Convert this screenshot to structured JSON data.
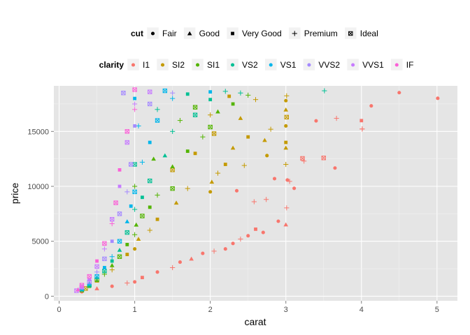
{
  "chart_data": {
    "type": "scatter",
    "xlabel": "carat",
    "ylabel": "price",
    "xlim": [
      -0.07,
      5.27
    ],
    "ylim": [
      -420,
      19150
    ],
    "x_ticks": [
      0,
      1,
      2,
      3,
      4,
      5
    ],
    "y_ticks": [
      0,
      5000,
      10000,
      15000
    ],
    "x_tick_labels": [
      "0",
      "1",
      "2",
      "3",
      "4",
      "5"
    ],
    "y_tick_labels": [
      "0",
      "5000",
      "10000",
      "15000"
    ],
    "grid": true,
    "panel_background": "#e5e5e5",
    "grid_color": "#ffffff",
    "legend_position": "top",
    "legends": [
      {
        "title": "cut",
        "aesthetic": "shape",
        "entries": [
          {
            "label": "Fair",
            "shape": "circle"
          },
          {
            "label": "Good",
            "shape": "triangle"
          },
          {
            "label": "Very Good",
            "shape": "square"
          },
          {
            "label": "Premium",
            "shape": "plus"
          },
          {
            "label": "Ideal",
            "shape": "square-cross"
          }
        ]
      },
      {
        "title": "clarity",
        "aesthetic": "color",
        "entries": [
          {
            "label": "I1",
            "color": "#F8766D"
          },
          {
            "label": "SI2",
            "color": "#C49A00"
          },
          {
            "label": "SI1",
            "color": "#53B400"
          },
          {
            "label": "VS2",
            "color": "#00C094"
          },
          {
            "label": "VS1",
            "color": "#00B6EB"
          },
          {
            "label": "VVS2",
            "color": "#A58AFF"
          },
          {
            "label": "VVS1",
            "color": "#C77CFF"
          },
          {
            "label": "IF",
            "color": "#FB61D7"
          }
        ]
      }
    ],
    "series": [
      {
        "name": "I1",
        "color": "#F8766D",
        "points": [
          {
            "x": 5.01,
            "y": 18018,
            "cut": "Fair"
          },
          {
            "x": 4.5,
            "y": 18531,
            "cut": "Fair"
          },
          {
            "x": 4.13,
            "y": 17329,
            "cut": "Fair"
          },
          {
            "x": 4.01,
            "y": 15223,
            "cut": "Premium"
          },
          {
            "x": 4.01,
            "y": 15223,
            "cut": "Premium"
          },
          {
            "x": 4.0,
            "y": 15984,
            "cut": "Very Good"
          },
          {
            "x": 3.67,
            "y": 16193,
            "cut": "Premium"
          },
          {
            "x": 3.65,
            "y": 11668,
            "cut": "Fair"
          },
          {
            "x": 3.5,
            "y": 12587,
            "cut": "Ideal"
          },
          {
            "x": 3.4,
            "y": 15964,
            "cut": "Fair"
          },
          {
            "x": 3.24,
            "y": 12300,
            "cut": "Premium"
          },
          {
            "x": 3.22,
            "y": 12545,
            "cut": "Ideal"
          },
          {
            "x": 3.11,
            "y": 9823,
            "cut": "Fair"
          },
          {
            "x": 3.05,
            "y": 10453,
            "cut": "Premium"
          },
          {
            "x": 3.02,
            "y": 10577,
            "cut": "Fair"
          },
          {
            "x": 3.01,
            "y": 8040,
            "cut": "Premium"
          },
          {
            "x": 3.0,
            "y": 6512,
            "cut": "Good"
          },
          {
            "x": 2.9,
            "y": 6824,
            "cut": "Fair"
          },
          {
            "x": 2.74,
            "y": 8807,
            "cut": "Premium"
          },
          {
            "x": 2.7,
            "y": 5800,
            "cut": "Fair"
          },
          {
            "x": 2.6,
            "y": 6100,
            "cut": "Very Good"
          },
          {
            "x": 2.5,
            "y": 5500,
            "cut": "Fair"
          },
          {
            "x": 2.4,
            "y": 5200,
            "cut": "Premium"
          },
          {
            "x": 2.3,
            "y": 4800,
            "cut": "Fair"
          },
          {
            "x": 2.2,
            "y": 4300,
            "cut": "Fair"
          },
          {
            "x": 2.05,
            "y": 4100,
            "cut": "Premium"
          },
          {
            "x": 1.9,
            "y": 3900,
            "cut": "Fair"
          },
          {
            "x": 1.75,
            "y": 3400,
            "cut": "Good"
          },
          {
            "x": 1.6,
            "y": 3100,
            "cut": "Fair"
          },
          {
            "x": 1.5,
            "y": 2600,
            "cut": "Premium"
          },
          {
            "x": 1.3,
            "y": 2200,
            "cut": "Fair"
          },
          {
            "x": 1.1,
            "y": 1700,
            "cut": "Very Good"
          },
          {
            "x": 1.0,
            "y": 1300,
            "cut": "Fair"
          },
          {
            "x": 0.9,
            "y": 1200,
            "cut": "Premium"
          },
          {
            "x": 0.7,
            "y": 900,
            "cut": "Fair"
          },
          {
            "x": 0.5,
            "y": 700,
            "cut": "Good"
          },
          {
            "x": 0.3,
            "y": 400,
            "cut": "Fair"
          },
          {
            "x": 2.85,
            "y": 10700,
            "cut": "Fair"
          },
          {
            "x": 2.58,
            "y": 8600,
            "cut": "Premium"
          },
          {
            "x": 2.35,
            "y": 9600,
            "cut": "Fair"
          }
        ]
      },
      {
        "name": "SI2",
        "color": "#C49A00",
        "points": [
          {
            "x": 3.01,
            "y": 18242,
            "cut": "Premium"
          },
          {
            "x": 3.0,
            "y": 17800,
            "cut": "Fair"
          },
          {
            "x": 3.0,
            "y": 16970,
            "cut": "Good"
          },
          {
            "x": 3.0,
            "y": 15500,
            "cut": "Fair"
          },
          {
            "x": 3.0,
            "y": 14000,
            "cut": "Very Good"
          },
          {
            "x": 3.0,
            "y": 12000,
            "cut": "Premium"
          },
          {
            "x": 3.01,
            "y": 16300,
            "cut": "Ideal"
          },
          {
            "x": 2.8,
            "y": 15200,
            "cut": "Premium"
          },
          {
            "x": 2.75,
            "y": 12800,
            "cut": "Fair"
          },
          {
            "x": 2.72,
            "y": 14200,
            "cut": "Good"
          },
          {
            "x": 2.5,
            "y": 14500,
            "cut": "Very Good"
          },
          {
            "x": 2.45,
            "y": 11900,
            "cut": "Premium"
          },
          {
            "x": 2.3,
            "y": 13500,
            "cut": "Good"
          },
          {
            "x": 2.2,
            "y": 12000,
            "cut": "Very Good"
          },
          {
            "x": 2.1,
            "y": 11200,
            "cut": "Premium"
          },
          {
            "x": 2.05,
            "y": 14800,
            "cut": "Ideal"
          },
          {
            "x": 2.02,
            "y": 10400,
            "cut": "Good"
          },
          {
            "x": 2.0,
            "y": 9500,
            "cut": "Fair"
          },
          {
            "x": 2.0,
            "y": 16500,
            "cut": "Premium"
          },
          {
            "x": 1.8,
            "y": 13000,
            "cut": "Very Good"
          },
          {
            "x": 1.7,
            "y": 9800,
            "cut": "Premium"
          },
          {
            "x": 1.55,
            "y": 8500,
            "cut": "Good"
          },
          {
            "x": 1.5,
            "y": 11500,
            "cut": "Ideal"
          },
          {
            "x": 1.3,
            "y": 7000,
            "cut": "Very Good"
          },
          {
            "x": 1.2,
            "y": 6000,
            "cut": "Premium"
          },
          {
            "x": 1.05,
            "y": 5200,
            "cut": "Good"
          },
          {
            "x": 1.0,
            "y": 4300,
            "cut": "Fair"
          },
          {
            "x": 0.9,
            "y": 3800,
            "cut": "Very Good"
          },
          {
            "x": 0.7,
            "y": 2400,
            "cut": "Premium"
          },
          {
            "x": 0.5,
            "y": 1400,
            "cut": "Good"
          },
          {
            "x": 0.35,
            "y": 700,
            "cut": "Ideal"
          },
          {
            "x": 2.6,
            "y": 17900,
            "cut": "Premium"
          },
          {
            "x": 2.4,
            "y": 16200,
            "cut": "Good"
          },
          {
            "x": 2.25,
            "y": 18200,
            "cut": "Very Good"
          },
          {
            "x": 3.0,
            "y": 13500,
            "cut": "Good"
          }
        ]
      },
      {
        "name": "SI1",
        "color": "#53B400",
        "points": [
          {
            "x": 2.5,
            "y": 18300,
            "cut": "Premium"
          },
          {
            "x": 2.3,
            "y": 17500,
            "cut": "Very Good"
          },
          {
            "x": 2.1,
            "y": 16800,
            "cut": "Good"
          },
          {
            "x": 2.0,
            "y": 15400,
            "cut": "Ideal"
          },
          {
            "x": 1.9,
            "y": 14500,
            "cut": "Premium"
          },
          {
            "x": 1.7,
            "y": 13200,
            "cut": "Very Good"
          },
          {
            "x": 1.5,
            "y": 11800,
            "cut": "Good"
          },
          {
            "x": 1.5,
            "y": 9800,
            "cut": "Ideal"
          },
          {
            "x": 1.3,
            "y": 9200,
            "cut": "Premium"
          },
          {
            "x": 1.2,
            "y": 8100,
            "cut": "Very Good"
          },
          {
            "x": 1.1,
            "y": 7300,
            "cut": "Ideal"
          },
          {
            "x": 1.02,
            "y": 6500,
            "cut": "Good"
          },
          {
            "x": 1.0,
            "y": 5600,
            "cut": "Premium"
          },
          {
            "x": 0.9,
            "y": 4700,
            "cut": "Very Good"
          },
          {
            "x": 0.8,
            "y": 3600,
            "cut": "Ideal"
          },
          {
            "x": 0.7,
            "y": 2800,
            "cut": "Good"
          },
          {
            "x": 0.6,
            "y": 2000,
            "cut": "Premium"
          },
          {
            "x": 0.5,
            "y": 1500,
            "cut": "Ideal"
          },
          {
            "x": 0.4,
            "y": 900,
            "cut": "Very Good"
          },
          {
            "x": 0.3,
            "y": 550,
            "cut": "Ideal"
          },
          {
            "x": 1.0,
            "y": 10000,
            "cut": "Premium"
          },
          {
            "x": 1.25,
            "y": 12500,
            "cut": "Good"
          },
          {
            "x": 1.6,
            "y": 16000,
            "cut": "Premium"
          },
          {
            "x": 1.8,
            "y": 17200,
            "cut": "Ideal"
          }
        ]
      },
      {
        "name": "VS2",
        "color": "#00C094",
        "points": [
          {
            "x": 3.51,
            "y": 18701,
            "cut": "Premium"
          },
          {
            "x": 2.4,
            "y": 18500,
            "cut": "Premium"
          },
          {
            "x": 2.0,
            "y": 17900,
            "cut": "Very Good"
          },
          {
            "x": 1.8,
            "y": 16500,
            "cut": "Ideal"
          },
          {
            "x": 1.5,
            "y": 15000,
            "cut": "Premium"
          },
          {
            "x": 1.4,
            "y": 12800,
            "cut": "Good"
          },
          {
            "x": 1.2,
            "y": 10500,
            "cut": "Ideal"
          },
          {
            "x": 1.1,
            "y": 9000,
            "cut": "Very Good"
          },
          {
            "x": 1.0,
            "y": 7900,
            "cut": "Premium"
          },
          {
            "x": 0.9,
            "y": 5800,
            "cut": "Ideal"
          },
          {
            "x": 0.8,
            "y": 4200,
            "cut": "Good"
          },
          {
            "x": 0.7,
            "y": 3200,
            "cut": "Very Good"
          },
          {
            "x": 0.6,
            "y": 2300,
            "cut": "Ideal"
          },
          {
            "x": 0.5,
            "y": 1600,
            "cut": "Premium"
          },
          {
            "x": 0.4,
            "y": 1000,
            "cut": "Ideal"
          },
          {
            "x": 0.3,
            "y": 600,
            "cut": "Very Good"
          },
          {
            "x": 1.0,
            "y": 12000,
            "cut": "Ideal"
          },
          {
            "x": 1.3,
            "y": 17000,
            "cut": "Premium"
          },
          {
            "x": 1.7,
            "y": 18400,
            "cut": "Very Good"
          },
          {
            "x": 2.2,
            "y": 18650,
            "cut": "Premium"
          }
        ]
      },
      {
        "name": "VS1",
        "color": "#00B6EB",
        "points": [
          {
            "x": 2.0,
            "y": 18600,
            "cut": "Very Good"
          },
          {
            "x": 1.5,
            "y": 18000,
            "cut": "Premium"
          },
          {
            "x": 1.3,
            "y": 16000,
            "cut": "Ideal"
          },
          {
            "x": 1.2,
            "y": 14000,
            "cut": "Very Good"
          },
          {
            "x": 1.1,
            "y": 12200,
            "cut": "Premium"
          },
          {
            "x": 1.0,
            "y": 9500,
            "cut": "Ideal"
          },
          {
            "x": 0.95,
            "y": 8200,
            "cut": "Very Good"
          },
          {
            "x": 0.9,
            "y": 6800,
            "cut": "Good"
          },
          {
            "x": 0.8,
            "y": 5000,
            "cut": "Ideal"
          },
          {
            "x": 0.7,
            "y": 3600,
            "cut": "Premium"
          },
          {
            "x": 0.6,
            "y": 2600,
            "cut": "Very Good"
          },
          {
            "x": 0.5,
            "y": 1800,
            "cut": "Ideal"
          },
          {
            "x": 0.4,
            "y": 1100,
            "cut": "Good"
          },
          {
            "x": 0.3,
            "y": 650,
            "cut": "Ideal"
          },
          {
            "x": 1.05,
            "y": 15500,
            "cut": "Premium"
          },
          {
            "x": 1.4,
            "y": 18700,
            "cut": "Ideal"
          },
          {
            "x": 1.0,
            "y": 18000,
            "cut": "Very Good"
          }
        ]
      },
      {
        "name": "VVS2",
        "color": "#A58AFF",
        "points": [
          {
            "x": 1.5,
            "y": 18500,
            "cut": "Premium"
          },
          {
            "x": 1.2,
            "y": 17500,
            "cut": "Ideal"
          },
          {
            "x": 1.0,
            "y": 15500,
            "cut": "Very Good"
          },
          {
            "x": 0.95,
            "y": 12000,
            "cut": "Ideal"
          },
          {
            "x": 0.9,
            "y": 9500,
            "cut": "Premium"
          },
          {
            "x": 0.8,
            "y": 7500,
            "cut": "Ideal"
          },
          {
            "x": 0.7,
            "y": 5000,
            "cut": "Very Good"
          },
          {
            "x": 0.6,
            "y": 3400,
            "cut": "Ideal"
          },
          {
            "x": 0.5,
            "y": 2200,
            "cut": "Premium"
          },
          {
            "x": 0.4,
            "y": 1300,
            "cut": "Ideal"
          },
          {
            "x": 0.3,
            "y": 750,
            "cut": "Very Good"
          },
          {
            "x": 0.85,
            "y": 18500,
            "cut": "Ideal"
          }
        ]
      },
      {
        "name": "VVS1",
        "color": "#C77CFF",
        "points": [
          {
            "x": 1.2,
            "y": 18600,
            "cut": "Ideal"
          },
          {
            "x": 1.0,
            "y": 17500,
            "cut": "Premium"
          },
          {
            "x": 0.9,
            "y": 14000,
            "cut": "Ideal"
          },
          {
            "x": 0.8,
            "y": 10000,
            "cut": "Very Good"
          },
          {
            "x": 0.7,
            "y": 7000,
            "cut": "Ideal"
          },
          {
            "x": 0.6,
            "y": 4300,
            "cut": "Premium"
          },
          {
            "x": 0.5,
            "y": 2700,
            "cut": "Ideal"
          },
          {
            "x": 0.4,
            "y": 1500,
            "cut": "Very Good"
          },
          {
            "x": 0.3,
            "y": 850,
            "cut": "Ideal"
          },
          {
            "x": 0.23,
            "y": 500,
            "cut": "Ideal"
          }
        ]
      },
      {
        "name": "IF",
        "color": "#FB61D7",
        "points": [
          {
            "x": 1.0,
            "y": 18800,
            "cut": "Ideal"
          },
          {
            "x": 1.0,
            "y": 17000,
            "cut": "Premium"
          },
          {
            "x": 0.9,
            "y": 15000,
            "cut": "Ideal"
          },
          {
            "x": 0.8,
            "y": 11500,
            "cut": "Very Good"
          },
          {
            "x": 0.75,
            "y": 8500,
            "cut": "Ideal"
          },
          {
            "x": 0.7,
            "y": 6600,
            "cut": "Premium"
          },
          {
            "x": 0.6,
            "y": 4800,
            "cut": "Ideal"
          },
          {
            "x": 0.5,
            "y": 3200,
            "cut": "Very Good"
          },
          {
            "x": 0.4,
            "y": 1800,
            "cut": "Ideal"
          },
          {
            "x": 0.3,
            "y": 1000,
            "cut": "Ideal"
          },
          {
            "x": 0.25,
            "y": 600,
            "cut": "Good"
          }
        ]
      }
    ]
  }
}
